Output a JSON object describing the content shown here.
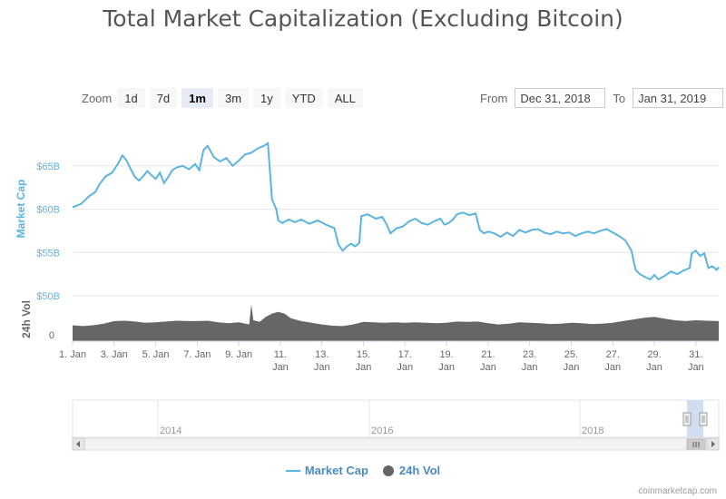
{
  "page": {
    "title": "Total Market Capitalization (Excluding Bitcoin)",
    "credits": "coinmarketcap.com"
  },
  "zoom": {
    "label": "Zoom",
    "buttons": [
      "1d",
      "7d",
      "1m",
      "3m",
      "1y",
      "YTD",
      "ALL"
    ],
    "active": "1m"
  },
  "range": {
    "from_label": "From",
    "from_value": "Dec 31, 2018",
    "to_label": "To",
    "to_value": "Jan 31, 2019"
  },
  "legend": {
    "market_cap": "Market Cap",
    "volume": "24h Vol"
  },
  "colors": {
    "market_cap": "#5bb4e0",
    "volume": "#666666",
    "axis_text": "#5bb4e0"
  },
  "chart_data": {
    "type": "line",
    "title": "Total Market Capitalization (Excluding Bitcoin)",
    "x_ticks": [
      {
        "day": 1,
        "line1": "1. Jan",
        "line2": ""
      },
      {
        "day": 3,
        "line1": "3. Jan",
        "line2": ""
      },
      {
        "day": 5,
        "line1": "5. Jan",
        "line2": ""
      },
      {
        "day": 7,
        "line1": "7. Jan",
        "line2": ""
      },
      {
        "day": 9,
        "line1": "9. Jan",
        "line2": ""
      },
      {
        "day": 11,
        "line1": "11.",
        "line2": "Jan"
      },
      {
        "day": 13,
        "line1": "13.",
        "line2": "Jan"
      },
      {
        "day": 15,
        "line1": "15.",
        "line2": "Jan"
      },
      {
        "day": 17,
        "line1": "17.",
        "line2": "Jan"
      },
      {
        "day": 19,
        "line1": "19.",
        "line2": "Jan"
      },
      {
        "day": 21,
        "line1": "21.",
        "line2": "Jan"
      },
      {
        "day": 23,
        "line1": "23.",
        "line2": "Jan"
      },
      {
        "day": 25,
        "line1": "25.",
        "line2": "Jan"
      },
      {
        "day": 27,
        "line1": "27.",
        "line2": "Jan"
      },
      {
        "day": 29,
        "line1": "29.",
        "line2": "Jan"
      },
      {
        "day": 31,
        "line1": "31.",
        "line2": "Jan"
      }
    ],
    "xlim": [
      1,
      32.1
    ],
    "y_axis": {
      "label": "Market Cap",
      "ticks": [
        {
          "value": 50,
          "label": "$50B"
        },
        {
          "value": 55,
          "label": "$55B"
        },
        {
          "value": 60,
          "label": "$60B"
        },
        {
          "value": 65,
          "label": "$65B"
        }
      ],
      "ylim": [
        50,
        70
      ]
    },
    "vol_axis": {
      "label": "24h Vol",
      "tick_label": "0"
    },
    "series": [
      {
        "name": "Market Cap",
        "points": [
          [
            1.0,
            60.2
          ],
          [
            1.4,
            60.6
          ],
          [
            1.8,
            61.5
          ],
          [
            2.1,
            62.0
          ],
          [
            2.3,
            62.9
          ],
          [
            2.6,
            63.8
          ],
          [
            2.9,
            64.2
          ],
          [
            3.2,
            65.3
          ],
          [
            3.4,
            66.2
          ],
          [
            3.6,
            65.6
          ],
          [
            3.8,
            64.6
          ],
          [
            4.0,
            63.7
          ],
          [
            4.2,
            63.3
          ],
          [
            4.4,
            63.8
          ],
          [
            4.6,
            64.4
          ],
          [
            4.8,
            63.9
          ],
          [
            5.0,
            63.5
          ],
          [
            5.2,
            64.2
          ],
          [
            5.4,
            63.0
          ],
          [
            5.6,
            63.7
          ],
          [
            5.8,
            64.5
          ],
          [
            6.0,
            64.8
          ],
          [
            6.3,
            65.0
          ],
          [
            6.6,
            64.6
          ],
          [
            6.9,
            65.2
          ],
          [
            7.1,
            64.5
          ],
          [
            7.3,
            66.8
          ],
          [
            7.5,
            67.3
          ],
          [
            7.8,
            66.0
          ],
          [
            8.1,
            65.5
          ],
          [
            8.4,
            65.9
          ],
          [
            8.7,
            65.0
          ],
          [
            9.0,
            65.6
          ],
          [
            9.3,
            66.3
          ],
          [
            9.6,
            66.5
          ],
          [
            9.9,
            67.0
          ],
          [
            10.2,
            67.3
          ],
          [
            10.4,
            67.6
          ],
          [
            10.5,
            64.3
          ],
          [
            10.6,
            61.1
          ],
          [
            10.8,
            60.0
          ],
          [
            10.9,
            58.7
          ],
          [
            11.1,
            58.4
          ],
          [
            11.4,
            58.8
          ],
          [
            11.7,
            58.5
          ],
          [
            12.0,
            58.8
          ],
          [
            12.4,
            58.3
          ],
          [
            12.8,
            58.7
          ],
          [
            13.2,
            58.2
          ],
          [
            13.6,
            57.8
          ],
          [
            13.8,
            55.9
          ],
          [
            14.0,
            55.2
          ],
          [
            14.2,
            55.7
          ],
          [
            14.4,
            56.0
          ],
          [
            14.6,
            55.7
          ],
          [
            14.8,
            56.1
          ],
          [
            14.9,
            59.2
          ],
          [
            15.2,
            59.4
          ],
          [
            15.6,
            58.9
          ],
          [
            15.9,
            59.1
          ],
          [
            16.1,
            58.3
          ],
          [
            16.3,
            57.2
          ],
          [
            16.6,
            57.8
          ],
          [
            16.9,
            58.0
          ],
          [
            17.2,
            58.6
          ],
          [
            17.5,
            58.9
          ],
          [
            17.8,
            58.4
          ],
          [
            18.1,
            58.2
          ],
          [
            18.4,
            58.6
          ],
          [
            18.7,
            58.9
          ],
          [
            18.9,
            58.2
          ],
          [
            19.1,
            58.4
          ],
          [
            19.3,
            58.8
          ],
          [
            19.5,
            59.4
          ],
          [
            19.8,
            59.6
          ],
          [
            20.1,
            59.3
          ],
          [
            20.4,
            59.5
          ],
          [
            20.6,
            57.6
          ],
          [
            20.8,
            57.2
          ],
          [
            21.0,
            57.4
          ],
          [
            21.3,
            57.2
          ],
          [
            21.6,
            56.8
          ],
          [
            21.9,
            57.3
          ],
          [
            22.2,
            56.9
          ],
          [
            22.5,
            57.6
          ],
          [
            22.8,
            57.3
          ],
          [
            23.1,
            57.6
          ],
          [
            23.4,
            57.7
          ],
          [
            23.7,
            57.3
          ],
          [
            24.0,
            57.1
          ],
          [
            24.3,
            57.4
          ],
          [
            24.6,
            57.2
          ],
          [
            24.9,
            57.3
          ],
          [
            25.2,
            56.9
          ],
          [
            25.5,
            57.2
          ],
          [
            25.8,
            57.4
          ],
          [
            26.1,
            57.2
          ],
          [
            26.4,
            57.5
          ],
          [
            26.7,
            57.7
          ],
          [
            27.0,
            57.3
          ],
          [
            27.3,
            56.9
          ],
          [
            27.6,
            56.4
          ],
          [
            27.9,
            55.2
          ],
          [
            28.1,
            53.0
          ],
          [
            28.3,
            52.5
          ],
          [
            28.6,
            52.1
          ],
          [
            28.8,
            51.9
          ],
          [
            29.0,
            52.4
          ],
          [
            29.2,
            51.9
          ],
          [
            29.5,
            52.3
          ],
          [
            29.8,
            52.8
          ],
          [
            30.1,
            52.5
          ],
          [
            30.4,
            52.9
          ],
          [
            30.7,
            53.2
          ],
          [
            30.8,
            54.9
          ],
          [
            31.0,
            55.2
          ],
          [
            31.2,
            54.6
          ],
          [
            31.4,
            54.9
          ],
          [
            31.6,
            53.2
          ],
          [
            31.8,
            53.4
          ],
          [
            32.0,
            53.0
          ],
          [
            32.1,
            53.3
          ]
        ]
      },
      {
        "name": "24h Vol",
        "points": [
          [
            1.0,
            0.38
          ],
          [
            1.5,
            0.36
          ],
          [
            2.0,
            0.38
          ],
          [
            2.5,
            0.42
          ],
          [
            3.0,
            0.48
          ],
          [
            3.5,
            0.49
          ],
          [
            4.0,
            0.47
          ],
          [
            4.5,
            0.44
          ],
          [
            5.0,
            0.45
          ],
          [
            5.5,
            0.47
          ],
          [
            6.0,
            0.49
          ],
          [
            6.5,
            0.48
          ],
          [
            7.0,
            0.48
          ],
          [
            7.5,
            0.49
          ],
          [
            8.0,
            0.45
          ],
          [
            8.5,
            0.43
          ],
          [
            9.0,
            0.45
          ],
          [
            9.5,
            0.4
          ],
          [
            9.6,
            0.88
          ],
          [
            9.7,
            0.5
          ],
          [
            10.0,
            0.46
          ],
          [
            10.3,
            0.58
          ],
          [
            10.6,
            0.66
          ],
          [
            10.9,
            0.7
          ],
          [
            11.2,
            0.66
          ],
          [
            11.5,
            0.55
          ],
          [
            12.0,
            0.48
          ],
          [
            12.5,
            0.44
          ],
          [
            13.0,
            0.4
          ],
          [
            13.5,
            0.37
          ],
          [
            14.0,
            0.36
          ],
          [
            14.5,
            0.4
          ],
          [
            15.0,
            0.46
          ],
          [
            15.5,
            0.45
          ],
          [
            16.0,
            0.44
          ],
          [
            16.5,
            0.45
          ],
          [
            17.0,
            0.44
          ],
          [
            17.5,
            0.45
          ],
          [
            18.0,
            0.44
          ],
          [
            18.5,
            0.43
          ],
          [
            19.0,
            0.44
          ],
          [
            19.5,
            0.47
          ],
          [
            20.0,
            0.46
          ],
          [
            20.5,
            0.47
          ],
          [
            21.0,
            0.43
          ],
          [
            21.5,
            0.4
          ],
          [
            22.0,
            0.42
          ],
          [
            22.5,
            0.45
          ],
          [
            23.0,
            0.44
          ],
          [
            23.5,
            0.43
          ],
          [
            24.0,
            0.41
          ],
          [
            24.5,
            0.42
          ],
          [
            25.0,
            0.44
          ],
          [
            25.5,
            0.43
          ],
          [
            26.0,
            0.41
          ],
          [
            26.5,
            0.42
          ],
          [
            27.0,
            0.44
          ],
          [
            27.5,
            0.48
          ],
          [
            28.0,
            0.52
          ],
          [
            28.5,
            0.56
          ],
          [
            29.0,
            0.58
          ],
          [
            29.5,
            0.54
          ],
          [
            30.0,
            0.5
          ],
          [
            30.5,
            0.48
          ],
          [
            31.0,
            0.5
          ],
          [
            31.5,
            0.49
          ],
          [
            32.1,
            0.48
          ]
        ]
      }
    ]
  },
  "navigator": {
    "ticks": [
      "2014",
      "2016",
      "2018"
    ],
    "scroll_left_icon": "chevron-left-icon",
    "scroll_right_icon": "chevron-right-icon"
  }
}
